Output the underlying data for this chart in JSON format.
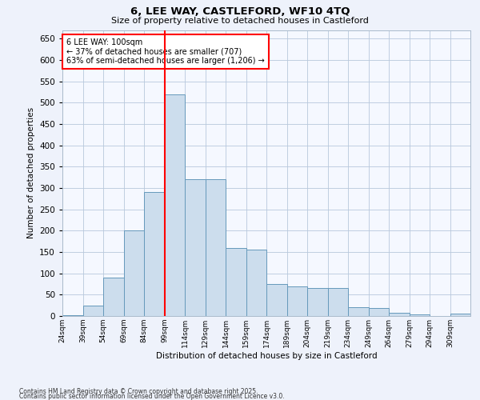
{
  "title1": "6, LEE WAY, CASTLEFORD, WF10 4TQ",
  "title2": "Size of property relative to detached houses in Castleford",
  "xlabel": "Distribution of detached houses by size in Castleford",
  "ylabel": "Number of detached properties",
  "bar_color": "#ccdded",
  "bar_edge_color": "#6699bb",
  "bins": [
    24,
    39,
    54,
    69,
    84,
    99,
    114,
    129,
    144,
    159,
    174,
    189,
    204,
    219,
    234,
    249,
    264,
    279,
    294,
    309,
    324
  ],
  "counts": [
    2,
    25,
    90,
    200,
    290,
    520,
    320,
    320,
    160,
    155,
    75,
    70,
    65,
    65,
    20,
    18,
    8,
    3,
    0,
    5
  ],
  "red_line_x": 99,
  "annot_line1": "6 LEE WAY: 100sqm",
  "annot_line2": "← 37% of detached houses are smaller (707)",
  "annot_line3": "63% of semi-detached houses are larger (1,206) →",
  "ylim": [
    0,
    670
  ],
  "yticks": [
    0,
    50,
    100,
    150,
    200,
    250,
    300,
    350,
    400,
    450,
    500,
    550,
    600,
    650
  ],
  "footnote1": "Contains HM Land Registry data © Crown copyright and database right 2025.",
  "footnote2": "Contains public sector information licensed under the Open Government Licence v3.0.",
  "bg_color": "#eef2fb",
  "plot_bg_color": "#f5f8ff"
}
